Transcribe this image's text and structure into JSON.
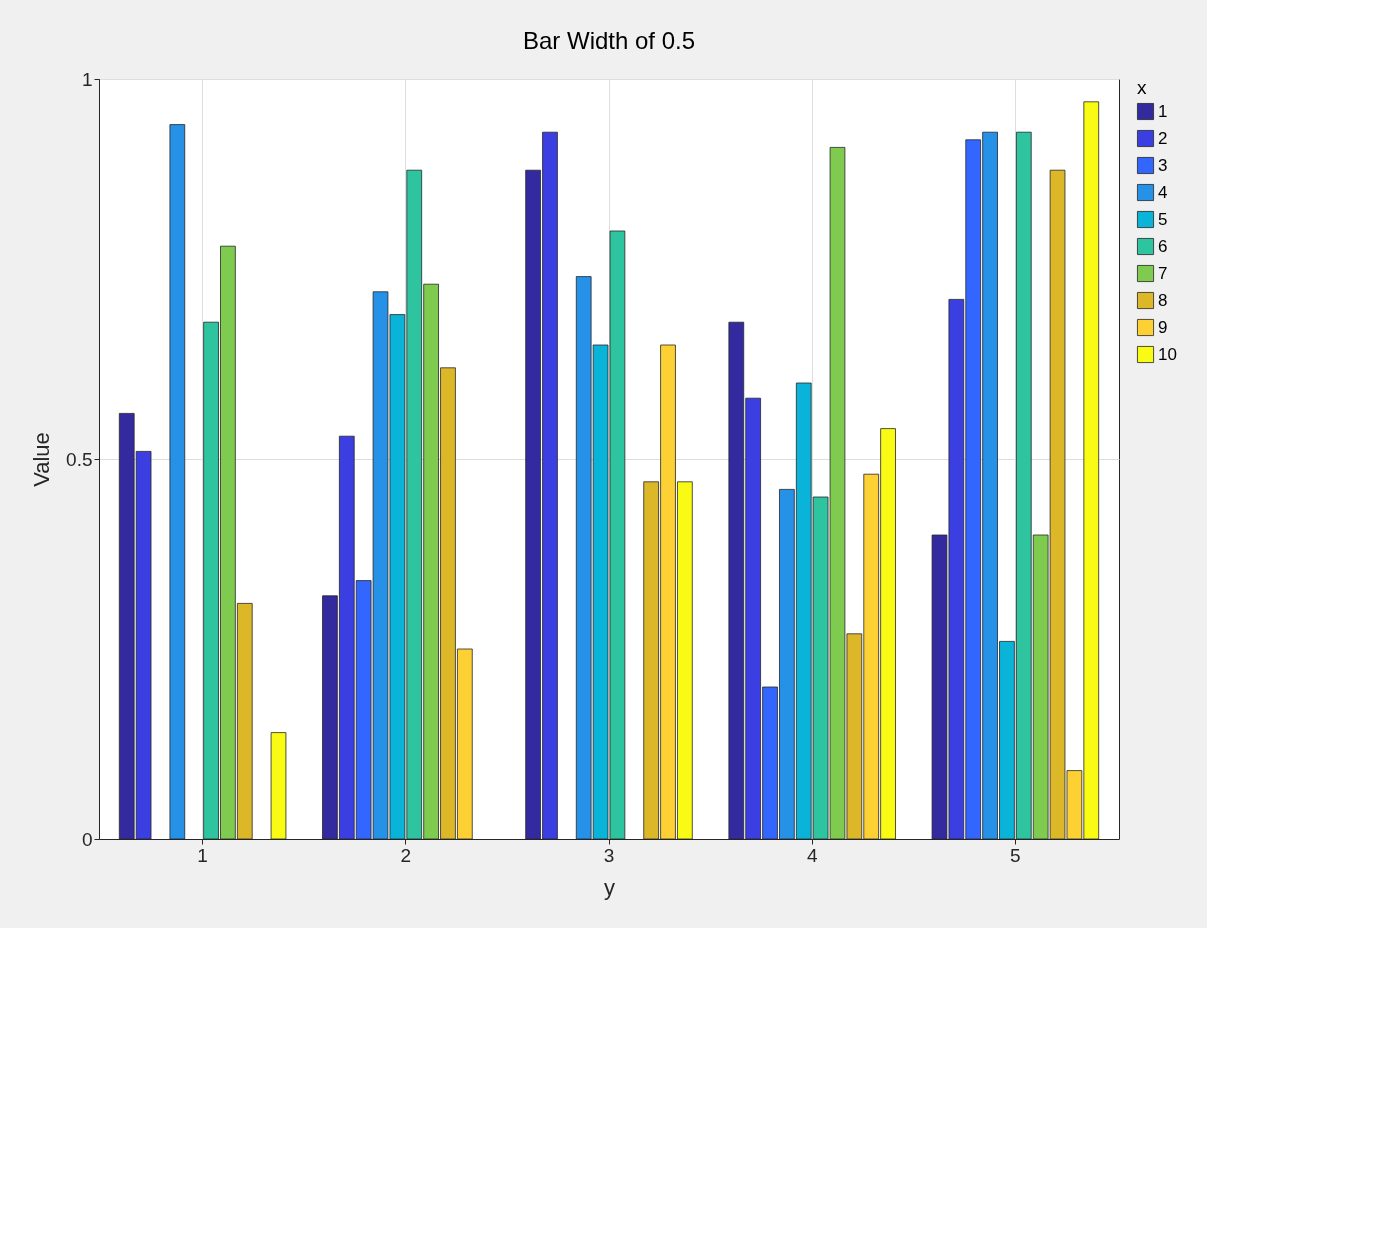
{
  "chart_data": {
    "type": "bar",
    "title": "Bar Width of 0.5",
    "xlabel": "y",
    "ylabel": "Value",
    "legend_title": "x",
    "categories": [
      "1",
      "2",
      "3",
      "4",
      "5"
    ],
    "series": [
      {
        "name": "1",
        "color": "#332aa0",
        "values": [
          0.56,
          0.32,
          0.88,
          0.68,
          0.4
        ]
      },
      {
        "name": "2",
        "color": "#3b3fe2",
        "values": [
          0.51,
          0.53,
          0.93,
          0.58,
          0.71
        ]
      },
      {
        "name": "3",
        "color": "#3366ff",
        "values": [
          null,
          0.34,
          null,
          0.2,
          0.92
        ]
      },
      {
        "name": "4",
        "color": "#2592e8",
        "values": [
          0.94,
          0.72,
          0.74,
          0.46,
          0.93
        ]
      },
      {
        "name": "5",
        "color": "#0ab4d8",
        "values": [
          null,
          0.69,
          0.65,
          0.6,
          0.26
        ]
      },
      {
        "name": "6",
        "color": "#2ec4a0",
        "values": [
          0.68,
          0.88,
          0.8,
          0.45,
          0.93
        ]
      },
      {
        "name": "7",
        "color": "#7fcb4f",
        "values": [
          0.78,
          0.73,
          null,
          0.91,
          0.4
        ]
      },
      {
        "name": "8",
        "color": "#dcb828",
        "values": [
          0.31,
          0.62,
          0.47,
          0.27,
          0.88
        ]
      },
      {
        "name": "9",
        "color": "#fdd133",
        "values": [
          null,
          0.25,
          0.65,
          0.48,
          0.09
        ]
      },
      {
        "name": "10",
        "color": "#f9fb14",
        "values": [
          0.14,
          null,
          0.47,
          0.54,
          0.97
        ]
      }
    ],
    "ylim": [
      0,
      1
    ],
    "yticks": [
      0,
      0.5,
      1
    ],
    "grid": true,
    "legend": "right"
  }
}
